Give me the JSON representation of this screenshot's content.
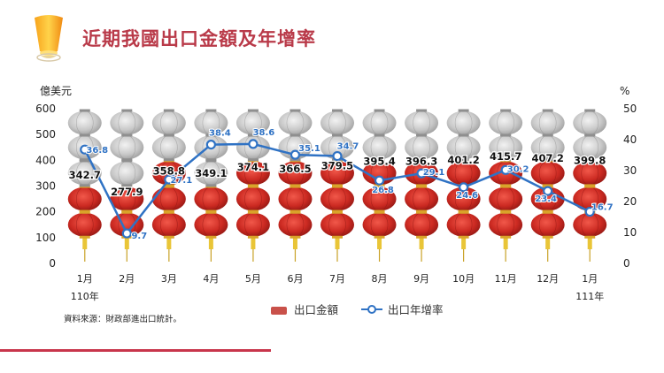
{
  "title": "近期我國出口金額及年增率",
  "source_note": "資料來源：財政部進出口統計。",
  "colors": {
    "accent": "#c8354b",
    "line": "#2f72c4",
    "lantern_red": "#cc2a22",
    "lantern_grey": "#c7c7c7",
    "tassel": "#e9c537"
  },
  "legend": {
    "bars_label": "出口金額",
    "line_label": "出口年增率"
  },
  "chart_data": {
    "type": "bar",
    "categories": [
      "1月",
      "2月",
      "3月",
      "4月",
      "5月",
      "6月",
      "7月",
      "8月",
      "9月",
      "10月",
      "11月",
      "12月",
      "1月"
    ],
    "category_sublabels": [
      "110年",
      "",
      "",
      "",
      "",
      "",
      "",
      "",
      "",
      "",
      "",
      "",
      "111年"
    ],
    "ylabel_left": "億美元",
    "ylabel_right": "%",
    "ylim_left": [
      0,
      600
    ],
    "yticks_left": [
      0,
      100,
      200,
      300,
      400,
      500,
      600
    ],
    "ylim_right": [
      0,
      50
    ],
    "yticks_right": [
      0,
      10,
      20,
      30,
      40,
      50
    ],
    "series": [
      {
        "name": "出口金額",
        "type": "bar",
        "axis": "left",
        "values": [
          342.7,
          277.9,
          358.8,
          349.1,
          374.1,
          366.5,
          379.5,
          395.4,
          396.3,
          401.2,
          415.7,
          407.2,
          399.8
        ],
        "labels": [
          "342.7",
          "277.9",
          "358.8",
          "349.1",
          "374.1",
          "366.5",
          "379.5",
          "395.4",
          "396.3",
          "401.2",
          "415.7",
          "407.2",
          "399.8"
        ]
      },
      {
        "name": "出口年增率",
        "type": "line",
        "axis": "right",
        "values": [
          36.8,
          9.7,
          27.1,
          38.4,
          38.6,
          35.1,
          34.7,
          26.8,
          29.1,
          24.6,
          30.2,
          23.4,
          16.7
        ],
        "labels": [
          "36.8",
          "9.7",
          "27.1",
          "38.4",
          "38.6",
          "35.1",
          "34.7",
          "26.8",
          "29.1",
          "24.6",
          "30.2",
          "23.4",
          "16.7"
        ]
      }
    ],
    "grid": false,
    "legend_position": "bottom-center"
  }
}
